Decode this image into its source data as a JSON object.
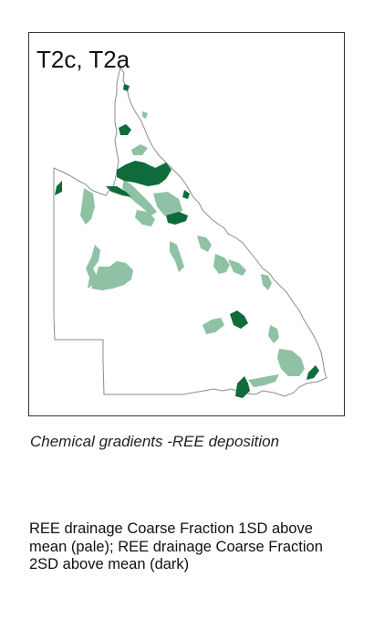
{
  "map": {
    "label": "T2c, T2a",
    "colors": {
      "outline": "#8c8c8c",
      "pale": "#8fc1a4",
      "dark": "#0f6b3c"
    }
  },
  "caption": "Chemical gradients -REE deposition",
  "legend_text": "REE drainage Coarse Fraction 1SD above mean (pale); REE drainage Coarse Fraction 2SD above mean (dark)"
}
